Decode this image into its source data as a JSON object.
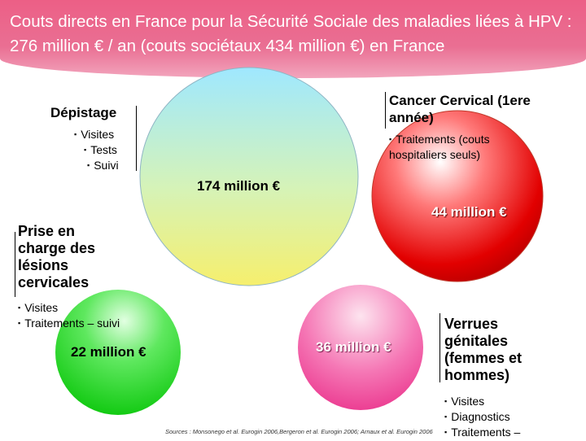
{
  "title": "Couts directs en France pour la Sécurité Sociale des maladies liées à HPV : 276 million € / an (couts sociétaux 434 million €) en France",
  "depistage": {
    "heading": "Dépistage",
    "items": [
      "Visites",
      "Tests",
      "Suivi"
    ],
    "amount": "174 million €",
    "color": "#f6ef6d"
  },
  "cancer": {
    "heading": "Cancer Cervical (1ere année)",
    "items": [
      "Traitements (couts hospitaliers seuls)"
    ],
    "amount": "44 million €",
    "color": "#e20000"
  },
  "lesions": {
    "heading": "Prise en charge des lésions cervicales",
    "items": [
      "Visites",
      "Traitements – suivi"
    ],
    "amount": "22 million €",
    "color": "#16d816"
  },
  "verrues": {
    "heading": "Verrues génitales (femmes et hommes)",
    "items": [
      "Visites",
      "Diagnostics",
      "Traitements –"
    ],
    "amount": "36 million €",
    "color": "#f04b9b"
  },
  "source": "Sources : Monsonego et al. Eurogin 2006,Bergeron et al. Eurogin 2006; Arnaux et al. Eurogin 2006"
}
